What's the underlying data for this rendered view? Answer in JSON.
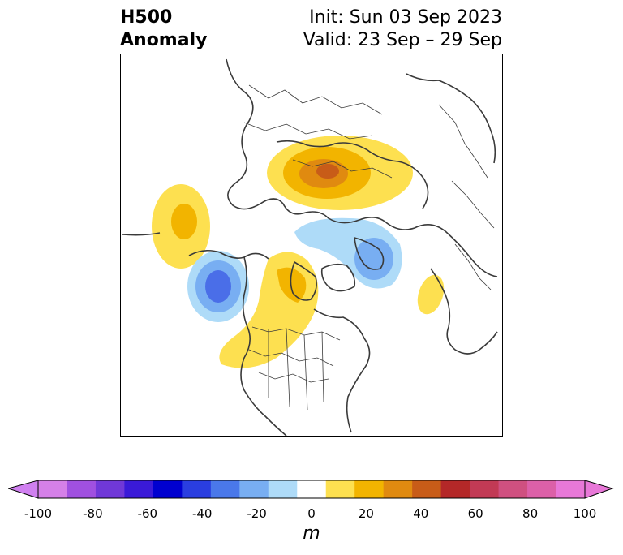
{
  "header": {
    "title_line1": "H500",
    "title_line2": "Anomaly",
    "init_text": "Init: Sun 03 Sep 2023",
    "valid_text": "Valid: 23 Sep – 29 Sep"
  },
  "colorbar": {
    "unit": "m",
    "min": -100,
    "max": 100,
    "step": 10,
    "tick_labels": [
      "-100",
      "-80",
      "-60",
      "-40",
      "-20",
      "0",
      "20",
      "40",
      "60",
      "80",
      "100"
    ],
    "colors": [
      "#d580e8",
      "#a050e0",
      "#7038d8",
      "#3a1ad8",
      "#0000d0",
      "#2a3ee0",
      "#4a78ea",
      "#78aef2",
      "#aedbf8",
      "#ffffff",
      "#fde050",
      "#f2b400",
      "#e08a10",
      "#c85c18",
      "#b42828",
      "#c23a55",
      "#cf5080",
      "#dc60a8",
      "#e878d8"
    ],
    "extend_low_color": "#d080f0",
    "extend_high_color": "#e878d8"
  },
  "map": {
    "projection": "north-polar-stereographic",
    "features": [
      "coastlines",
      "country-borders",
      "state-province-borders"
    ]
  }
}
